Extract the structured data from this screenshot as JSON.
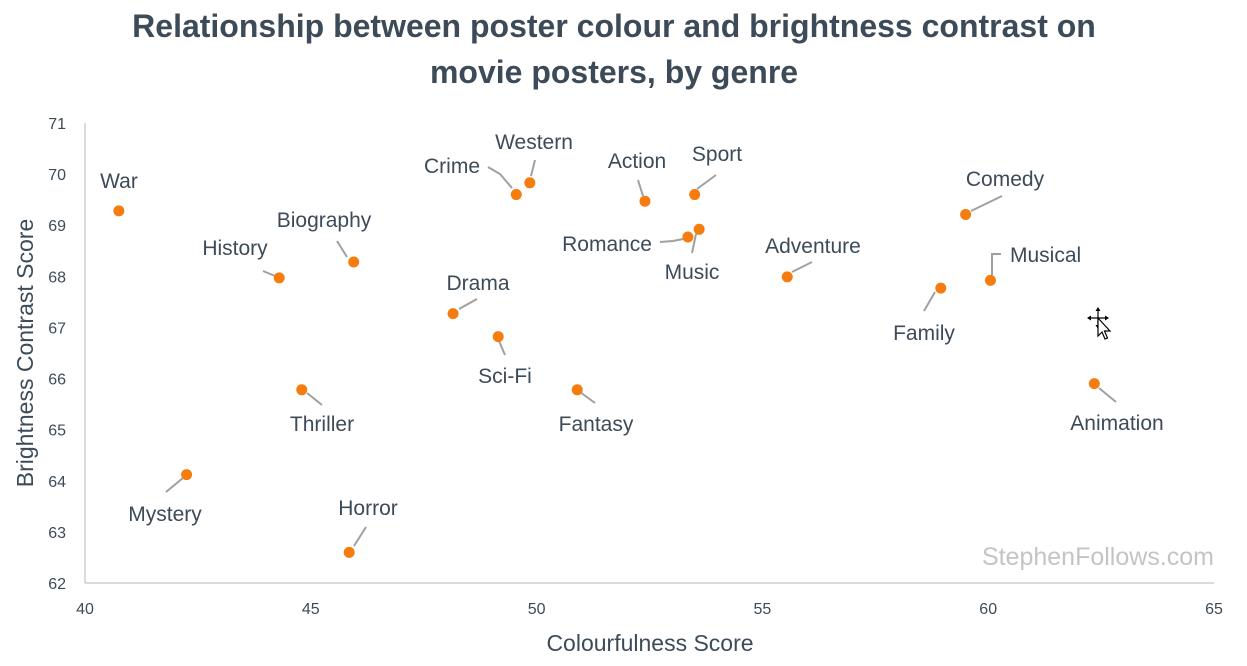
{
  "chart_data": {
    "type": "scatter",
    "title": "Relationship between poster colour and brightness contrast on movie posters, by genre",
    "title_lines": [
      "Relationship between poster colour and brightness contrast on",
      "movie posters, by genre"
    ],
    "xlabel": "Colourfulness Score",
    "ylabel": "Brightness Contrast Score",
    "xlim": [
      40,
      65
    ],
    "ylim": [
      62,
      71
    ],
    "x_ticks": [
      "40",
      "45",
      "50",
      "55",
      "60",
      "65"
    ],
    "y_ticks": [
      "62",
      "63",
      "64",
      "65",
      "66",
      "67",
      "68",
      "69",
      "70",
      "71"
    ],
    "grid": false,
    "marker_color": "#f57c0e",
    "points": [
      {
        "label": "War",
        "x": 40.75,
        "y": 69.28
      },
      {
        "label": "History",
        "x": 44.3,
        "y": 67.97
      },
      {
        "label": "Biography",
        "x": 45.95,
        "y": 68.28
      },
      {
        "label": "Thriller",
        "x": 44.8,
        "y": 65.78
      },
      {
        "label": "Mystery",
        "x": 42.25,
        "y": 64.12
      },
      {
        "label": "Horror",
        "x": 45.85,
        "y": 62.6
      },
      {
        "label": "Drama",
        "x": 48.15,
        "y": 67.27
      },
      {
        "label": "Sci-Fi",
        "x": 49.15,
        "y": 66.82
      },
      {
        "label": "Crime",
        "x": 49.55,
        "y": 69.6
      },
      {
        "label": "Western",
        "x": 49.85,
        "y": 69.83
      },
      {
        "label": "Fantasy",
        "x": 50.9,
        "y": 65.78
      },
      {
        "label": "Action",
        "x": 52.4,
        "y": 69.47
      },
      {
        "label": "Romance",
        "x": 53.35,
        "y": 68.77
      },
      {
        "label": "Music",
        "x": 53.6,
        "y": 68.92
      },
      {
        "label": "Sport",
        "x": 53.5,
        "y": 69.6
      },
      {
        "label": "Adventure",
        "x": 55.55,
        "y": 67.99
      },
      {
        "label": "Family",
        "x": 58.95,
        "y": 67.77
      },
      {
        "label": "Musical",
        "x": 60.05,
        "y": 67.92
      },
      {
        "label": "Comedy",
        "x": 59.5,
        "y": 69.21
      },
      {
        "label": "Animation",
        "x": 62.35,
        "y": 65.9
      }
    ]
  },
  "watermark": "StephenFollows.com"
}
